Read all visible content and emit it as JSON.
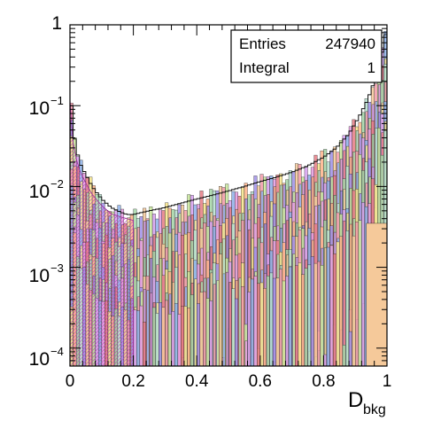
{
  "chart_data": {
    "type": "histogram",
    "stacked": true,
    "title": "",
    "xlabel_main": "D",
    "xlabel_sub": "bkg",
    "ylabel": "",
    "y_scale": "log",
    "xlim": [
      0,
      1
    ],
    "ylim": [
      6e-05,
      1
    ],
    "grid": false,
    "bins": 100,
    "x_ticks": [
      "0",
      "0.2",
      "0.4",
      "0.6",
      "0.8",
      "1"
    ],
    "y_ticks": [
      {
        "mantissa": "1",
        "exp": ""
      },
      {
        "mantissa": "10",
        "exp": "−1"
      },
      {
        "mantissa": "10",
        "exp": "−2"
      },
      {
        "mantissa": "10",
        "exp": "−3"
      },
      {
        "mantissa": "10",
        "exp": "−4"
      }
    ],
    "stats": {
      "entries_label": "Entries",
      "entries_value": "247940",
      "integral_label": "Integral",
      "integral_value": "1"
    },
    "envelope_x": [
      0.0,
      0.005,
      0.01,
      0.02,
      0.03,
      0.05,
      0.07,
      0.1,
      0.13,
      0.16,
      0.18,
      0.2,
      0.25,
      0.3,
      0.35,
      0.4,
      0.45,
      0.5,
      0.55,
      0.6,
      0.65,
      0.7,
      0.75,
      0.8,
      0.84,
      0.88,
      0.91,
      0.94,
      0.96,
      0.98,
      0.99,
      1.0
    ],
    "envelope_y": [
      0.35,
      0.1,
      0.05,
      0.03,
      0.02,
      0.014,
      0.01,
      0.007,
      0.0055,
      0.0048,
      0.0045,
      0.0045,
      0.005,
      0.0055,
      0.0062,
      0.007,
      0.0078,
      0.0088,
      0.01,
      0.0115,
      0.013,
      0.015,
      0.018,
      0.023,
      0.03,
      0.045,
      0.07,
      0.12,
      0.2,
      0.35,
      0.6,
      0.95
    ],
    "pink_x": [
      0.0,
      0.005,
      0.01,
      0.02,
      0.03,
      0.05,
      0.07,
      0.1,
      0.13,
      0.16,
      0.18,
      0.2
    ],
    "pink_y": [
      0.12,
      0.06,
      0.035,
      0.022,
      0.016,
      0.011,
      0.008,
      0.0058,
      0.0046,
      0.0042,
      0.004,
      0.0038
    ],
    "series_colors": [
      "#f29aa8",
      "#e57b84",
      "#9f8fe6",
      "#8db0e8",
      "#a5d6a7",
      "#c9e79b",
      "#f7e58c",
      "#f5c99a",
      "#e49be0",
      "#b7e0cf",
      "#d7a0f0",
      "#ffb38a"
    ],
    "orange_tail_color": "#f5c99a",
    "pink_color": "#f0b3ec"
  }
}
